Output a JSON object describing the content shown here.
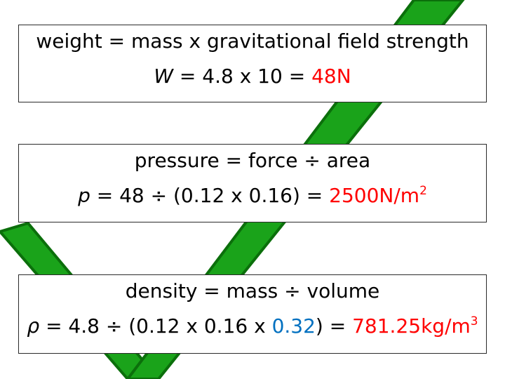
{
  "colors": {
    "tick_fill": "#1aa31a",
    "tick_outline": "#0b6f0b",
    "answer": "#ff0000",
    "highlight": "#0070c0",
    "text": "#000000"
  },
  "icons": {
    "background": "green-checkmark-icon"
  },
  "weight": {
    "formula": "weight = mass x gravitational field strength",
    "symbol": "W",
    "calc": " = 4.8 x 10 = ",
    "answer": "48N"
  },
  "pressure": {
    "formula": "pressure = force ÷ area",
    "symbol": "p",
    "calc": " = 48 ÷ (0.12 x 0.16) = ",
    "answer": "2500N/m",
    "answer_exp": "2"
  },
  "density": {
    "formula": "density = mass ÷ volume",
    "symbol": "ρ",
    "calc_before": " = 4.8 ÷ (0.12 x 0.16 x ",
    "highlight": "0.32",
    "calc_after": ") = ",
    "answer": "781.25kg/m",
    "answer_exp": "3"
  }
}
